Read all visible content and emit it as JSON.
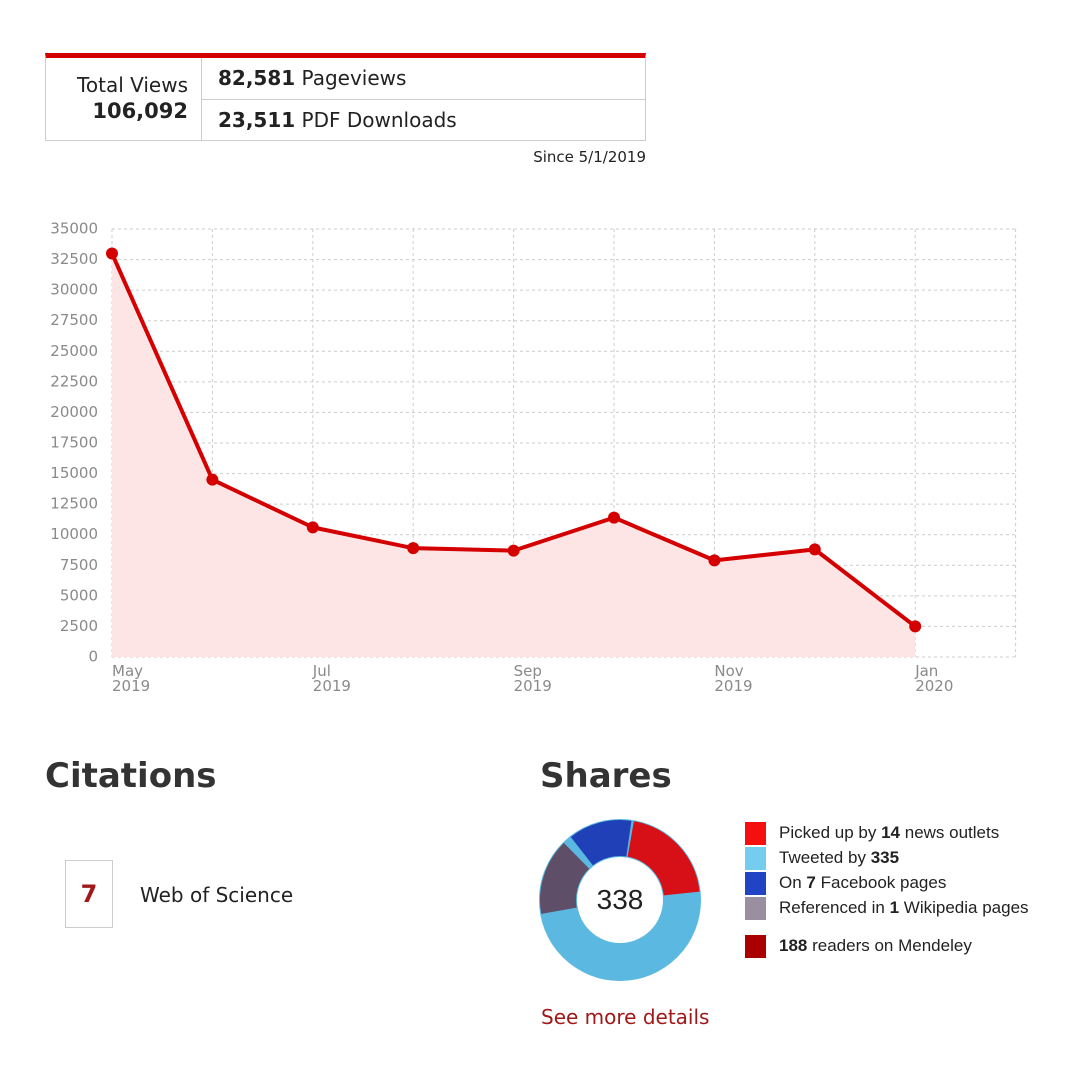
{
  "views": {
    "label": "Total Views",
    "total": "106,092",
    "rows": [
      {
        "number": "82,581",
        "label": "Pageviews"
      },
      {
        "number": "23,511",
        "label": "PDF Downloads"
      }
    ],
    "since": "Since 5/1/2019"
  },
  "chart_data": {
    "type": "line",
    "color": "#d40000",
    "area_color": "#fde5e6",
    "categories": [
      "May 2019",
      null,
      "Jul 2019",
      null,
      "Sep 2019",
      null,
      "Nov 2019",
      null,
      "Jan 2020"
    ],
    "values": [
      33000,
      14500,
      10600,
      8900,
      8700,
      11400,
      7900,
      8800,
      2500
    ],
    "ylim": [
      0,
      35000
    ],
    "yticks": [
      0,
      2500,
      5000,
      7500,
      10000,
      12500,
      15000,
      17500,
      20000,
      22500,
      25000,
      27500,
      30000,
      32500,
      35000
    ],
    "grid": true
  },
  "citations": {
    "title": "Citations",
    "count": "7",
    "source": "Web of Science"
  },
  "shares": {
    "title": "Shares",
    "score": "338",
    "legend": [
      {
        "color": "#f50f0f",
        "before": "Picked up by",
        "number": "14",
        "after": "news outlets"
      },
      {
        "color": "#74cdef",
        "before": "Tweeted by",
        "number": "335",
        "after": ""
      },
      {
        "color": "#2144c4",
        "before": "On",
        "number": "7",
        "after": "Facebook pages"
      },
      {
        "color": "#9a8fa0",
        "before": "Referenced in",
        "number": "1",
        "after": "Wikipedia pages"
      },
      {
        "color": "#aa0000",
        "before": "",
        "number": "188",
        "after": "readers on Mendeley"
      }
    ],
    "link": "See more details"
  }
}
